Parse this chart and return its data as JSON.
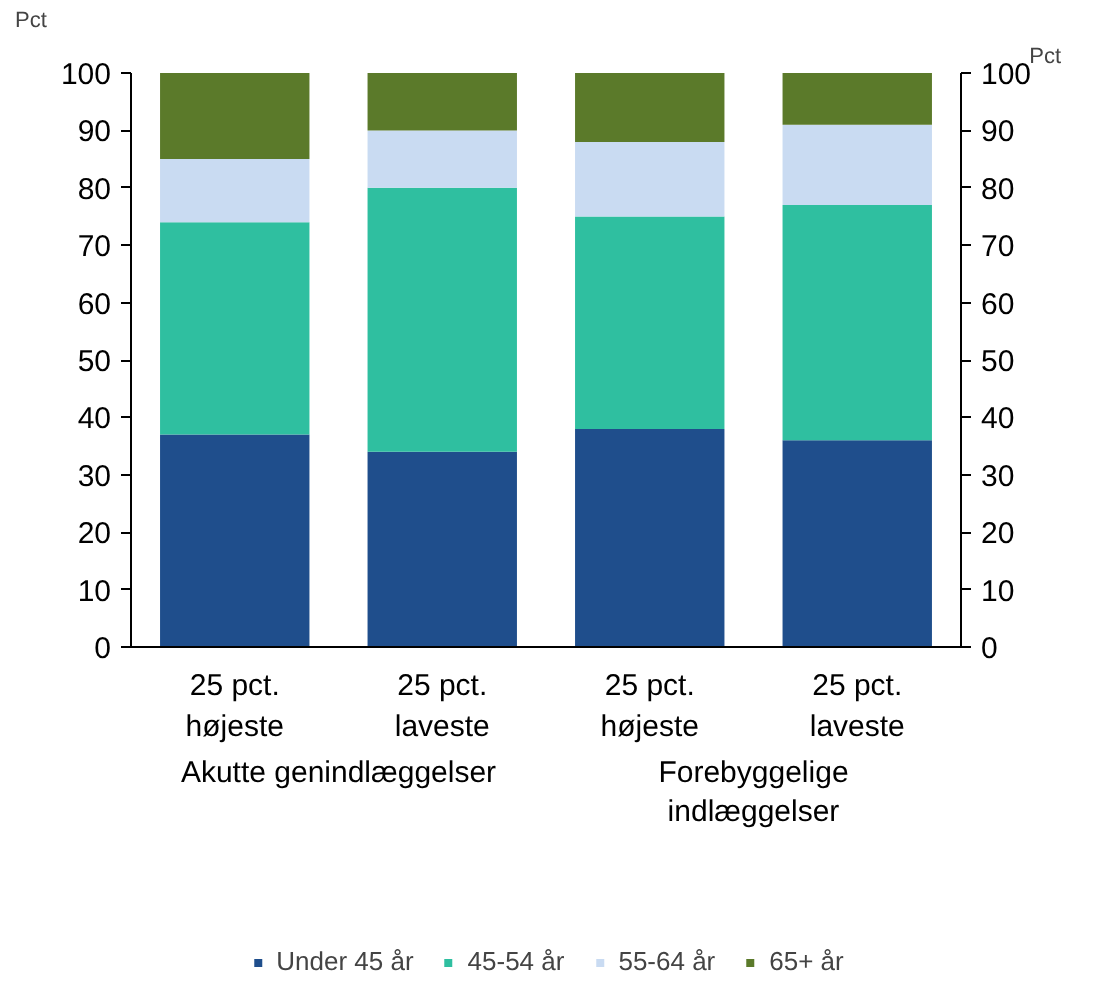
{
  "chart_data": {
    "type": "bar",
    "stacked": true,
    "categories": [
      "25 pct.\nhøjeste",
      "25 pct.\nlaveste",
      "25 pct.\nhøjeste",
      "25 pct.\nlaveste"
    ],
    "series": [
      {
        "name": "Under 45 år",
        "color": "#1f4e8c",
        "values": [
          37,
          34,
          38,
          36
        ]
      },
      {
        "name": "45-54 år",
        "color": "#2fbfa0",
        "values": [
          37,
          46,
          37,
          41
        ]
      },
      {
        "name": "55-64 år",
        "color": "#c9dbf2",
        "values": [
          11,
          10,
          13,
          14
        ]
      },
      {
        "name": "65+ år",
        "color": "#5b7a2a",
        "values": [
          15,
          10,
          12,
          9
        ]
      }
    ],
    "ylabel": "Pct",
    "y2label": "Pct",
    "ylim": [
      0,
      100
    ],
    "yticks": [
      0,
      10,
      20,
      30,
      40,
      50,
      60,
      70,
      80,
      90,
      100
    ],
    "y2lim": [
      0,
      100
    ],
    "y2ticks": [
      0,
      10,
      20,
      30,
      40,
      50,
      60,
      70,
      80,
      90,
      100
    ],
    "annotations": [
      "Akutte genindlæggelser",
      "Forebyggelige\nindlæggelser"
    ],
    "grid": false,
    "legend": "bottom"
  }
}
